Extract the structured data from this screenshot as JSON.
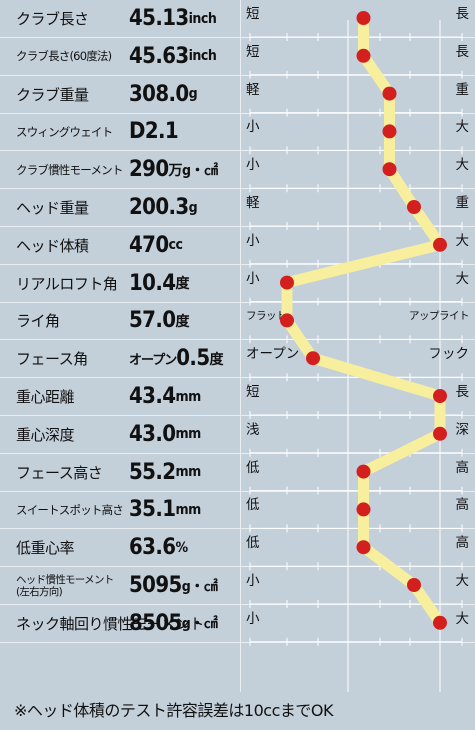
{
  "chart_data": {
    "type": "line",
    "rows": [
      {
        "label": "クラブ長さ",
        "value": "45.13",
        "unit": "inch",
        "left": "短",
        "right": "長",
        "position": 0.5
      },
      {
        "label": "クラブ長さ(60度法)",
        "value": "45.63",
        "unit": "inch",
        "left": "短",
        "right": "長",
        "position": 0.5
      },
      {
        "label": "クラブ重量",
        "value": "308.0",
        "unit": "g",
        "left": "軽",
        "right": "重",
        "position": 0.67
      },
      {
        "label": "スウィングウェイト",
        "value": "D2.1",
        "unit": "",
        "left": "小",
        "right": "大",
        "position": 0.67
      },
      {
        "label": "クラブ慣性モーメント",
        "value": "290",
        "unit": "万g・㎠",
        "left": "小",
        "right": "大",
        "position": 0.67
      },
      {
        "label": "ヘッド重量",
        "value": "200.3",
        "unit": "g",
        "left": "軽",
        "right": "重",
        "position": 0.83
      },
      {
        "label": "ヘッド体積",
        "value": "470",
        "unit": "cc",
        "left": "小",
        "right": "大",
        "position": 1.0
      },
      {
        "label": "リアルロフト角",
        "value": "10.4",
        "unit": "度",
        "left": "小",
        "right": "大",
        "position": 0.0
      },
      {
        "label": "ライ角",
        "value": "57.0",
        "unit": "度",
        "left": "フラット",
        "right": "アップライト",
        "position": 0.0
      },
      {
        "label": "フェース角",
        "prefix": "オープン",
        "value": "0.5",
        "unit": "度",
        "left": "オープン",
        "right": "フック",
        "position": 0.17
      },
      {
        "label": "重心距離",
        "value": "43.4",
        "unit": "mm",
        "left": "短",
        "right": "長",
        "position": 1.0
      },
      {
        "label": "重心深度",
        "value": "43.0",
        "unit": "mm",
        "left": "浅",
        "right": "深",
        "position": 1.0
      },
      {
        "label": "フェース高さ",
        "value": "55.2",
        "unit": "mm",
        "left": "低",
        "right": "高",
        "position": 0.5
      },
      {
        "label": "スイートスポット高さ",
        "value": "35.1",
        "unit": "mm",
        "left": "低",
        "right": "高",
        "position": 0.5
      },
      {
        "label": "低重心率",
        "value": "63.6",
        "unit": "%",
        "left": "低",
        "right": "高",
        "position": 0.5
      },
      {
        "label": "ヘッド慣性モーメント(左右方向)",
        "value": "5095",
        "unit": "g・㎠",
        "left": "小",
        "right": "大",
        "position": 0.83
      },
      {
        "label": "ネック軸回り慣性モーメント",
        "value": "8505",
        "unit": "g・㎠",
        "left": "小",
        "right": "大",
        "position": 1.0
      }
    ],
    "colors": {
      "line": "#f7ef9e",
      "dot": "#d41f1f",
      "axis": "#ffffff",
      "background": "#c3cfd9"
    }
  },
  "note": "※ヘッド体積のテスト許容誤差は10ccまでOK"
}
